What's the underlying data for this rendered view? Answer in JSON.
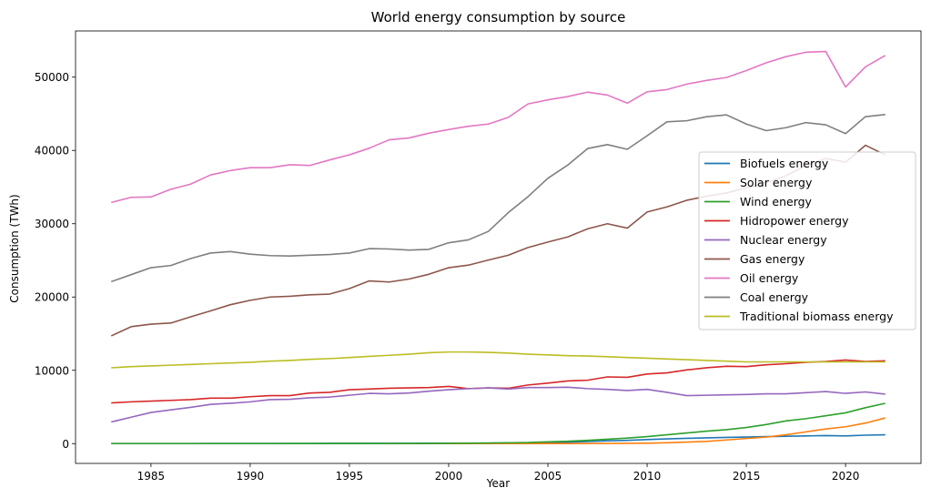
{
  "chart_data": {
    "type": "line",
    "title": "World energy consumption by source",
    "xlabel": "Year",
    "ylabel": "Consumption (TWh)",
    "xlim": [
      1981.2,
      2023.8
    ],
    "ylim": [
      -2700,
      56300
    ],
    "xticks": [
      1985,
      1990,
      1995,
      2000,
      2005,
      2010,
      2015,
      2020
    ],
    "yticks": [
      0,
      10000,
      20000,
      30000,
      40000,
      50000
    ],
    "grid": false,
    "legend_position": "center-right",
    "x": [
      1983,
      1984,
      1985,
      1986,
      1987,
      1988,
      1989,
      1990,
      1991,
      1992,
      1993,
      1994,
      1995,
      1996,
      1997,
      1998,
      1999,
      2000,
      2001,
      2002,
      2003,
      2004,
      2005,
      2006,
      2007,
      2008,
      2009,
      2010,
      2011,
      2012,
      2013,
      2014,
      2015,
      2016,
      2017,
      2018,
      2019,
      2020,
      2021,
      2022
    ],
    "series": [
      {
        "name": "Biofuels energy",
        "color": "#1f77b4",
        "values": [
          10,
          12,
          14,
          16,
          18,
          20,
          22,
          25,
          27,
          30,
          32,
          35,
          38,
          40,
          43,
          46,
          50,
          55,
          60,
          70,
          85,
          110,
          150,
          200,
          280,
          380,
          450,
          550,
          650,
          720,
          780,
          850,
          900,
          950,
          1000,
          1050,
          1100,
          1050,
          1150,
          1200
        ]
      },
      {
        "name": "Solar energy",
        "color": "#ff7f0e",
        "values": [
          0,
          0,
          0,
          0,
          0,
          0,
          0,
          0,
          0,
          0,
          0,
          0,
          0,
          0,
          0,
          0,
          0,
          1,
          2,
          3,
          4,
          5,
          7,
          10,
          15,
          25,
          40,
          60,
          120,
          210,
          300,
          500,
          700,
          900,
          1200,
          1600,
          2000,
          2300,
          2800,
          3500
        ]
      },
      {
        "name": "Wind energy",
        "color": "#2ca02c",
        "values": [
          0,
          0,
          0,
          0,
          0,
          0,
          1,
          2,
          3,
          4,
          5,
          7,
          10,
          13,
          17,
          23,
          30,
          45,
          60,
          80,
          110,
          150,
          250,
          320,
          450,
          600,
          750,
          950,
          1200,
          1450,
          1700,
          1900,
          2200,
          2600,
          3100,
          3400,
          3800,
          4200,
          4900,
          5500
        ]
      },
      {
        "name": "Hidropower energy",
        "color": "#d62728",
        "values": [
          5550,
          5700,
          5800,
          5900,
          6000,
          6200,
          6200,
          6400,
          6550,
          6550,
          6900,
          7000,
          7350,
          7450,
          7550,
          7600,
          7650,
          7800,
          7500,
          7600,
          7550,
          8000,
          8250,
          8550,
          8650,
          9100,
          9050,
          9500,
          9650,
          10050,
          10350,
          10550,
          10500,
          10750,
          10900,
          11100,
          11200,
          11400,
          11200,
          11300
        ]
      },
      {
        "name": "Nuclear energy",
        "color": "#9467bd",
        "values": [
          2950,
          3600,
          4250,
          4600,
          4950,
          5350,
          5500,
          5700,
          6000,
          6050,
          6250,
          6350,
          6600,
          6850,
          6800,
          6900,
          7150,
          7350,
          7500,
          7600,
          7450,
          7650,
          7650,
          7700,
          7500,
          7400,
          7250,
          7400,
          7000,
          6550,
          6600,
          6650,
          6700,
          6800,
          6800,
          6950,
          7100,
          6850,
          7050,
          6750
        ]
      },
      {
        "name": "Gas energy",
        "color": "#8c564b",
        "values": [
          14700,
          15950,
          16300,
          16450,
          17300,
          18100,
          18950,
          19550,
          20000,
          20100,
          20300,
          20400,
          21150,
          22200,
          22050,
          22450,
          23100,
          24000,
          24350,
          25050,
          25700,
          26750,
          27500,
          28200,
          29300,
          30000,
          29400,
          31600,
          32300,
          33200,
          33750,
          34200,
          34900,
          35600,
          36550,
          37950,
          38900,
          38400,
          40700,
          39400
        ]
      },
      {
        "name": "Oil energy",
        "color": "#e377c2",
        "values": [
          32900,
          33600,
          33650,
          34700,
          35400,
          36650,
          37250,
          37650,
          37650,
          38050,
          37950,
          38700,
          39400,
          40300,
          41450,
          41700,
          42350,
          42850,
          43300,
          43600,
          44500,
          46350,
          46900,
          47350,
          47950,
          47550,
          46450,
          48000,
          48300,
          49050,
          49550,
          49950,
          50900,
          51950,
          52800,
          53400,
          53500,
          48650,
          51400,
          52950
        ]
      },
      {
        "name": "Coal energy",
        "color": "#7f7f7f",
        "values": [
          22100,
          23050,
          24000,
          24300,
          25250,
          26000,
          26200,
          25850,
          25650,
          25600,
          25700,
          25800,
          26000,
          26600,
          26550,
          26400,
          26500,
          27400,
          27800,
          28950,
          31500,
          33700,
          36200,
          38000,
          40250,
          40800,
          40150,
          42000,
          43900,
          44050,
          44600,
          44850,
          43600,
          42700,
          43100,
          43800,
          43500,
          42300,
          44600,
          44900
        ]
      },
      {
        "name": "Traditional biomass energy",
        "color": "#bcbd22",
        "values": [
          10350,
          10500,
          10600,
          10700,
          10800,
          10900,
          11000,
          11100,
          11250,
          11350,
          11500,
          11600,
          11750,
          11900,
          12050,
          12200,
          12400,
          12500,
          12500,
          12450,
          12350,
          12200,
          12100,
          12000,
          11950,
          11850,
          11750,
          11650,
          11550,
          11450,
          11350,
          11250,
          11150,
          11150,
          11150,
          11150,
          11150,
          11150,
          11150,
          11150
        ]
      }
    ]
  }
}
